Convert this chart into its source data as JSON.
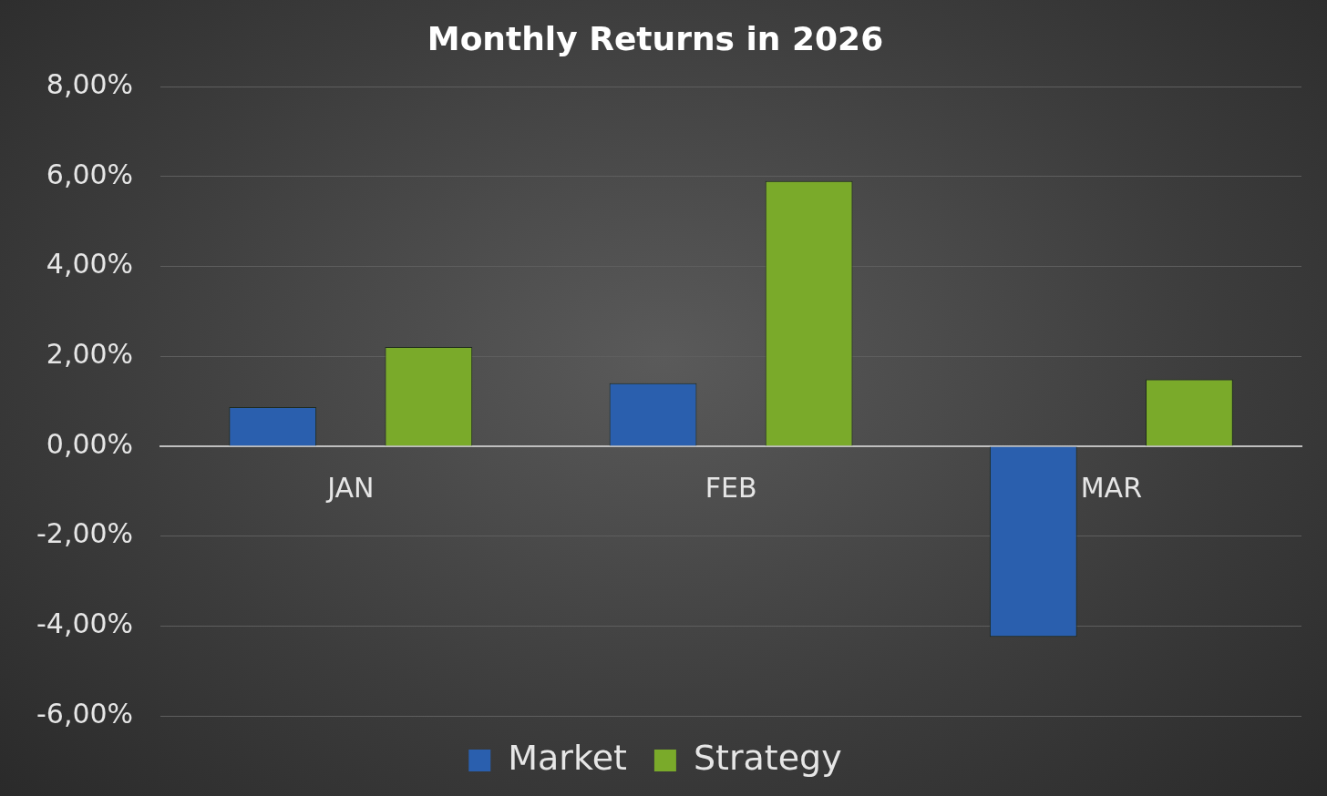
{
  "chart_data": {
    "type": "bar",
    "title": "Monthly Returns in 2026",
    "categories": [
      "JAN",
      "FEB",
      "MAR"
    ],
    "series": [
      {
        "name": "Market",
        "color": "#2a5fae",
        "values": [
          0.87,
          1.4,
          -4.24
        ]
      },
      {
        "name": "Strategy",
        "color": "#7aaa2a",
        "values": [
          2.21,
          5.9,
          1.49
        ]
      }
    ],
    "ylim": [
      -6,
      8
    ],
    "yticks": [
      {
        "value": -6,
        "label": "-6,00%"
      },
      {
        "value": -4,
        "label": "-4,00%"
      },
      {
        "value": -2,
        "label": "-2,00%"
      },
      {
        "value": 0,
        "label": "0,00%"
      },
      {
        "value": 2,
        "label": "2,00%"
      },
      {
        "value": 4,
        "label": "4,00%"
      },
      {
        "value": 6,
        "label": "6,00%"
      },
      {
        "value": 8,
        "label": "8,00%"
      }
    ],
    "grid": "y",
    "legend": "bottom"
  }
}
